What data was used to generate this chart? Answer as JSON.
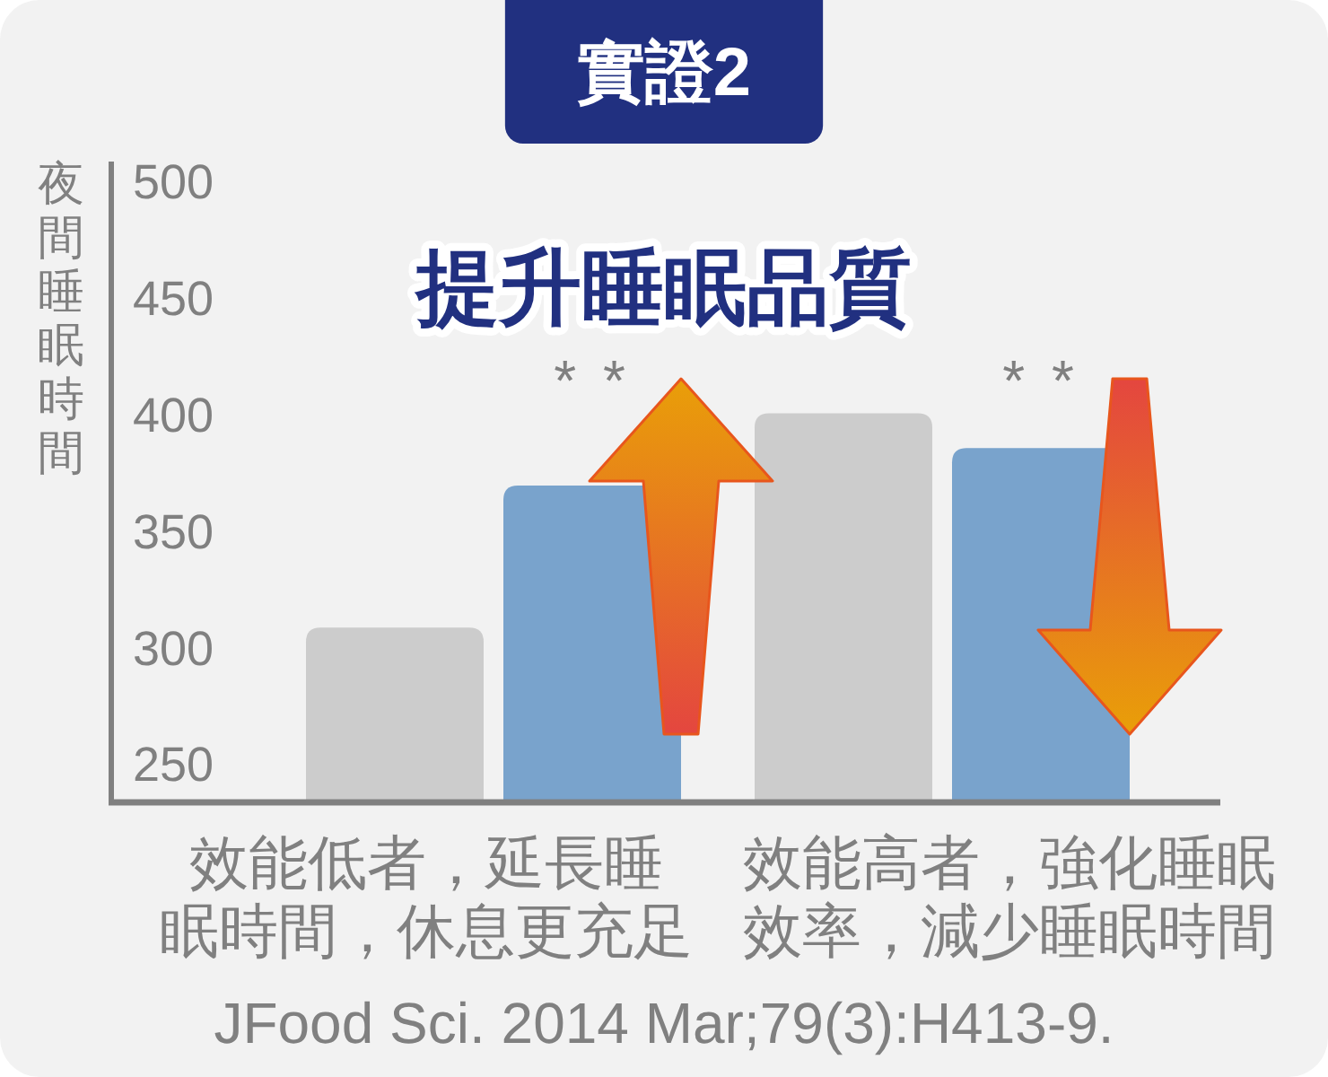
{
  "chart_data": {
    "type": "bar",
    "title": "實證2",
    "subtitle": "提升睡眠品質",
    "ylabel": "夜間睡眠時間",
    "categories": [
      "效能低者，延長睡眠時間，休息更充足",
      "效能高者，強化睡眠效率，減少睡眠時間"
    ],
    "series": [
      {
        "color": "#cccccc",
        "values": [
          309,
          401
        ]
      },
      {
        "color": "#79a3cc",
        "values": [
          370,
          386
        ]
      }
    ],
    "ylim": [
      234,
      509
    ],
    "yticks": [
      250,
      300,
      350,
      400,
      450,
      500
    ],
    "annotations": [
      "* *",
      "* *",
      "JFood Sci. 2014 Mar;79(3):H413-9."
    ]
  }
}
